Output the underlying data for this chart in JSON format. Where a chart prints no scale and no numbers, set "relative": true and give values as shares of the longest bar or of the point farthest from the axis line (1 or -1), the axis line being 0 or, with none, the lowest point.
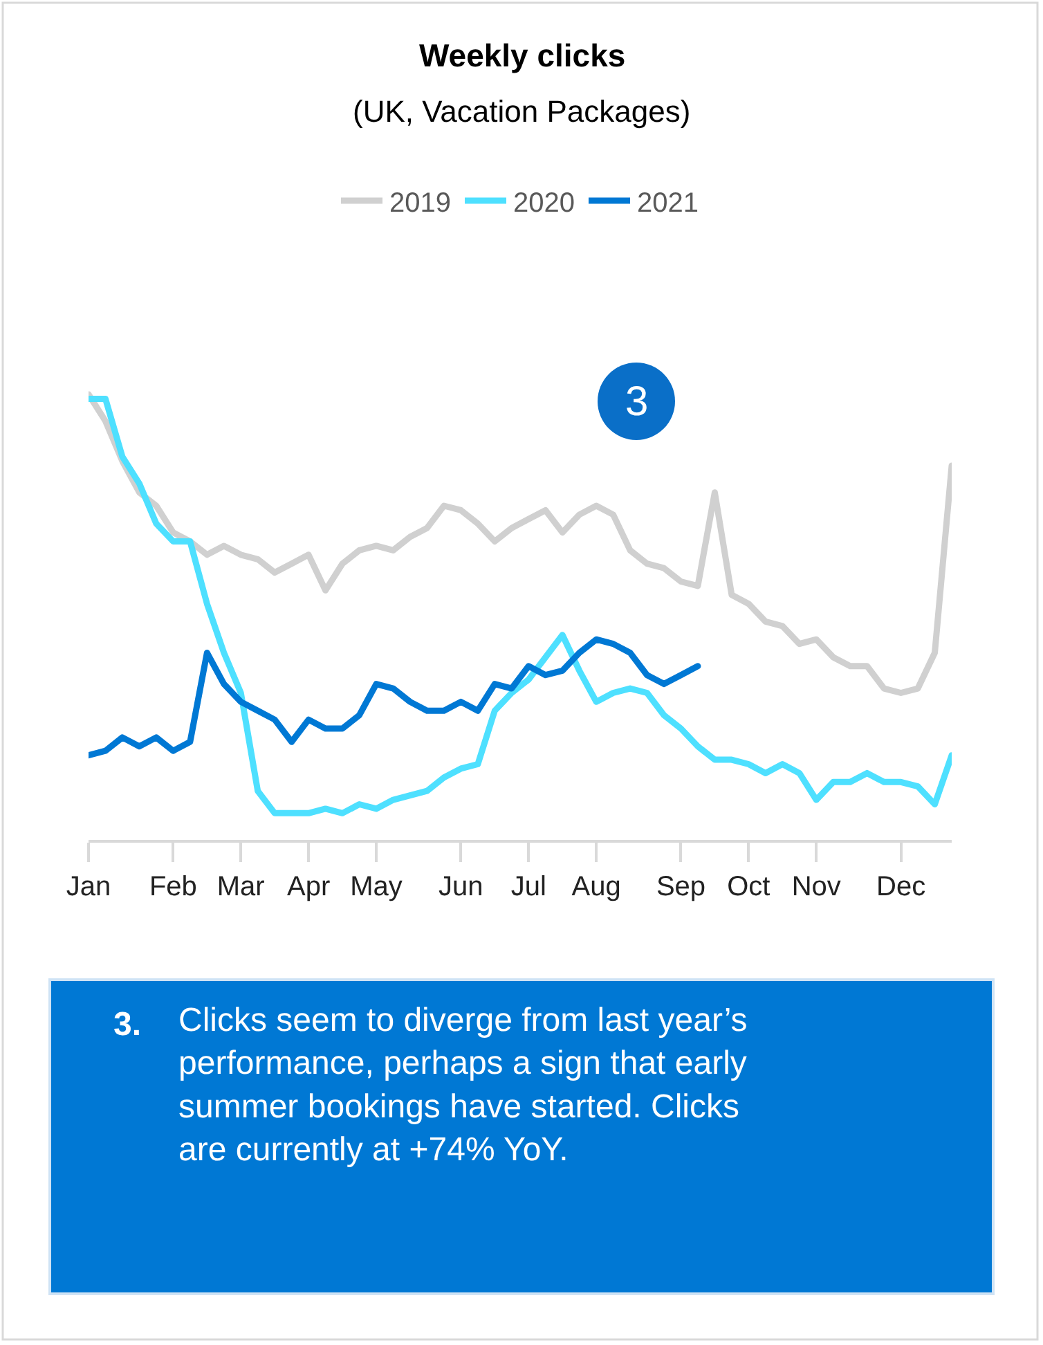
{
  "chart_data": {
    "type": "line",
    "title": "Weekly clicks",
    "subtitle": "(UK, Vacation Packages)",
    "relative": true,
    "legend": "top",
    "marker": "none",
    "line_style": "solid",
    "categories": [
      "Jan",
      null,
      null,
      null,
      null,
      "Feb",
      null,
      null,
      null,
      "Mar",
      null,
      null,
      null,
      "Apr",
      null,
      null,
      null,
      "May",
      null,
      null,
      null,
      null,
      "Jun",
      null,
      null,
      null,
      "Jul",
      null,
      null,
      null,
      "Aug",
      null,
      null,
      null,
      null,
      "Sep",
      null,
      null,
      null,
      "Oct",
      null,
      null,
      null,
      "Nov",
      null,
      null,
      null,
      null,
      "Dec",
      null,
      null,
      null
    ],
    "series": [
      {
        "name": "2019",
        "color": "#d0d0d0",
        "values": [
          1.0,
          0.94,
          0.85,
          0.78,
          0.75,
          0.69,
          0.67,
          0.64,
          0.66,
          0.64,
          0.63,
          0.6,
          0.62,
          0.64,
          0.56,
          0.62,
          0.65,
          0.66,
          0.65,
          0.68,
          0.7,
          0.75,
          0.74,
          0.71,
          0.67,
          0.7,
          0.72,
          0.74,
          0.69,
          0.73,
          0.75,
          0.73,
          0.65,
          0.62,
          0.61,
          0.58,
          0.57,
          0.78,
          0.55,
          0.53,
          0.49,
          0.48,
          0.44,
          0.45,
          0.41,
          0.39,
          0.39,
          0.34,
          0.33,
          0.34,
          0.42,
          0.84
        ]
      },
      {
        "name": "2020",
        "color": "#4ee0ff",
        "values": [
          0.99,
          0.99,
          0.86,
          0.8,
          0.71,
          0.67,
          0.67,
          0.53,
          0.42,
          0.33,
          0.11,
          0.06,
          0.06,
          0.06,
          0.07,
          0.06,
          0.08,
          0.07,
          0.09,
          0.1,
          0.11,
          0.14,
          0.16,
          0.17,
          0.29,
          0.33,
          0.36,
          0.41,
          0.46,
          0.38,
          0.31,
          0.33,
          0.34,
          0.33,
          0.28,
          0.25,
          0.21,
          0.18,
          0.18,
          0.17,
          0.15,
          0.17,
          0.15,
          0.09,
          0.13,
          0.13,
          0.15,
          0.13,
          0.13,
          0.12,
          0.08,
          0.19
        ]
      },
      {
        "name": "2021",
        "color": "#0078d4",
        "values": [
          0.19,
          0.2,
          0.23,
          0.21,
          0.23,
          0.2,
          0.22,
          0.42,
          0.35,
          0.31,
          0.29,
          0.27,
          0.22,
          0.27,
          0.25,
          0.25,
          0.28,
          0.35,
          0.34,
          0.31,
          0.29,
          0.29,
          0.31,
          0.29,
          0.35,
          0.34,
          0.39,
          0.37,
          0.38,
          0.42,
          0.45,
          0.44,
          0.42,
          0.37,
          0.35,
          0.37,
          0.39,
          null,
          null,
          null,
          null,
          null,
          null,
          null,
          null,
          null,
          null,
          null,
          null,
          null,
          null,
          null
        ]
      }
    ],
    "annotations": [
      "3",
      "3.",
      "Clicks seem to diverge from last year’s performance, perhaps a sign that early summer bookings have started. Clicks are currently at +74% YoY."
    ]
  }
}
